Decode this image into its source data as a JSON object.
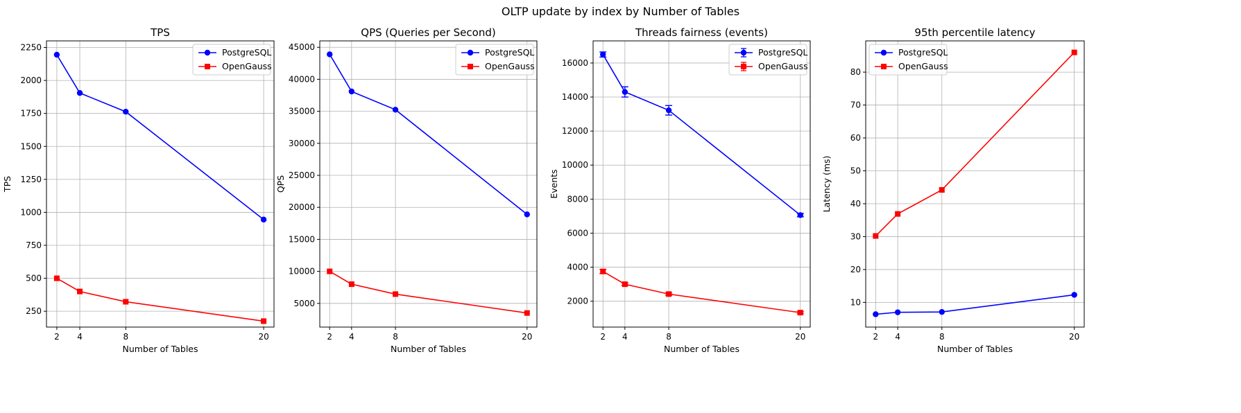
{
  "figure": {
    "suptitle": "OLTP update by index by Number of Tables",
    "colors": {
      "postgres": "#0000ff",
      "opengauss": "#ff0000",
      "grid": "#b0b0b0",
      "axis": "#000000"
    }
  },
  "chart_data": [
    {
      "type": "line",
      "title": "TPS",
      "xlabel": "Number of Tables",
      "ylabel": "TPS",
      "x": [
        2,
        4,
        8,
        20
      ],
      "xlim": [
        1.1,
        20.9
      ],
      "ylim": [
        130,
        2300
      ],
      "yticks": [
        250,
        500,
        750,
        1000,
        1250,
        1500,
        1750,
        2000,
        2250
      ],
      "grid": true,
      "legend": "top-right",
      "series": [
        {
          "name": "PostgreSQL",
          "marker": "circle",
          "color": "#0000ff",
          "values": [
            2195,
            1905,
            1763,
            945
          ]
        },
        {
          "name": "OpenGauss",
          "marker": "square",
          "color": "#ff0000",
          "values": [
            500,
            400,
            322,
            175
          ]
        }
      ]
    },
    {
      "type": "line",
      "title": "QPS (Queries per Second)",
      "xlabel": "Number of Tables",
      "ylabel": "QPS",
      "x": [
        2,
        4,
        8,
        20
      ],
      "xlim": [
        1.1,
        20.9
      ],
      "ylim": [
        1300,
        46000
      ],
      "yticks": [
        5000,
        10000,
        15000,
        20000,
        25000,
        30000,
        35000,
        40000,
        45000
      ],
      "grid": true,
      "legend": "top-right",
      "series": [
        {
          "name": "PostgreSQL",
          "marker": "circle",
          "color": "#0000ff",
          "values": [
            43900,
            38100,
            35250,
            18900
          ]
        },
        {
          "name": "OpenGauss",
          "marker": "square",
          "color": "#ff0000",
          "values": [
            10000,
            8000,
            6450,
            3500
          ]
        }
      ]
    },
    {
      "type": "line",
      "title": "Threads fairness (events)",
      "xlabel": "Number of Tables",
      "ylabel": "Events",
      "x": [
        2,
        4,
        8,
        20
      ],
      "xlim": [
        1.1,
        20.9
      ],
      "ylim": [
        480,
        17300
      ],
      "yticks": [
        2000,
        4000,
        6000,
        8000,
        10000,
        12000,
        14000,
        16000
      ],
      "grid": true,
      "legend": "top-right",
      "error_bars": true,
      "series": [
        {
          "name": "PostgreSQL",
          "marker": "circle",
          "color": "#0000ff",
          "values": [
            16500,
            14300,
            13220,
            7060
          ],
          "errors": [
            150,
            300,
            280,
            100
          ]
        },
        {
          "name": "OpenGauss",
          "marker": "square",
          "color": "#ff0000",
          "values": [
            3750,
            3000,
            2420,
            1330
          ],
          "errors": [
            120,
            80,
            70,
            60
          ]
        }
      ]
    },
    {
      "type": "line",
      "title": "95th percentile latency",
      "xlabel": "Number of Tables",
      "ylabel": "Latency (ms)",
      "x": [
        2,
        4,
        8,
        20
      ],
      "xlim": [
        1.1,
        20.9
      ],
      "ylim": [
        2.5,
        89.5
      ],
      "yticks": [
        10,
        20,
        30,
        40,
        50,
        60,
        70,
        80
      ],
      "grid": true,
      "legend": "top-left",
      "series": [
        {
          "name": "PostgreSQL",
          "marker": "circle",
          "color": "#0000ff",
          "values": [
            6.4,
            7.0,
            7.1,
            12.3
          ]
        },
        {
          "name": "OpenGauss",
          "marker": "square",
          "color": "#ff0000",
          "values": [
            30.2,
            36.9,
            44.2,
            86.0
          ]
        }
      ]
    }
  ]
}
